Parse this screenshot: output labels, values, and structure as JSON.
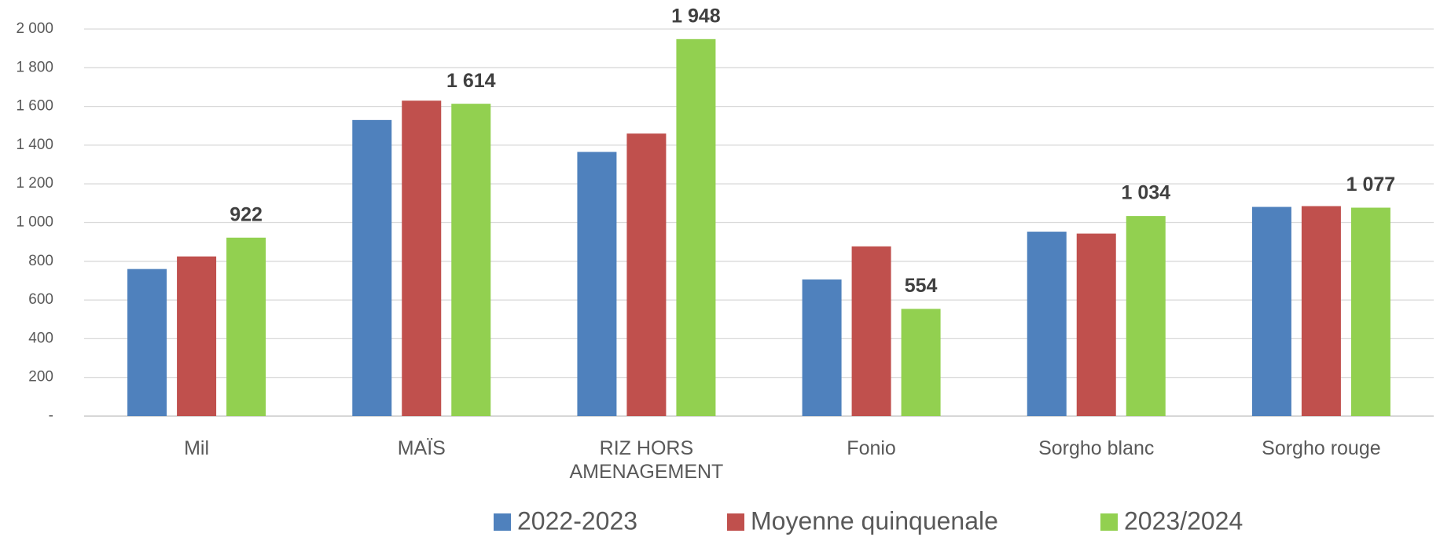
{
  "chart_data": {
    "type": "bar",
    "categories": [
      "Mil",
      "MAÏS",
      "RIZ HORS AMENAGEMENT",
      "Fonio",
      "Sorgho blanc",
      "Sorgho rouge"
    ],
    "series": [
      {
        "name": "2022-2023",
        "color": "#4f81bd",
        "values": [
          760,
          1530,
          1365,
          706,
          953,
          1081
        ]
      },
      {
        "name": "Moyenne quinquenale",
        "color": "#c0504d",
        "values": [
          825,
          1630,
          1460,
          877,
          943,
          1085
        ]
      },
      {
        "name": "2023/2024",
        "color": "#92d050",
        "values": [
          922,
          1614,
          1948,
          554,
          1034,
          1077
        ],
        "value_labels": [
          "922",
          "1 614",
          "1 948",
          "554",
          "1 034",
          "1 077"
        ]
      }
    ],
    "ylim": [
      0,
      2000
    ],
    "yticks": [
      {
        "value": 0,
        "label": "-"
      },
      200,
      400,
      600,
      800,
      {
        "value": 1000,
        "label": "1 000"
      },
      {
        "value": 1200,
        "label": "1 200"
      },
      {
        "value": 1400,
        "label": "1 400"
      },
      {
        "value": 1600,
        "label": "1 600"
      },
      {
        "value": 1800,
        "label": "1 800"
      },
      {
        "value": 2000,
        "label": "2 000"
      }
    ],
    "grid": true,
    "legend": "bottom"
  }
}
